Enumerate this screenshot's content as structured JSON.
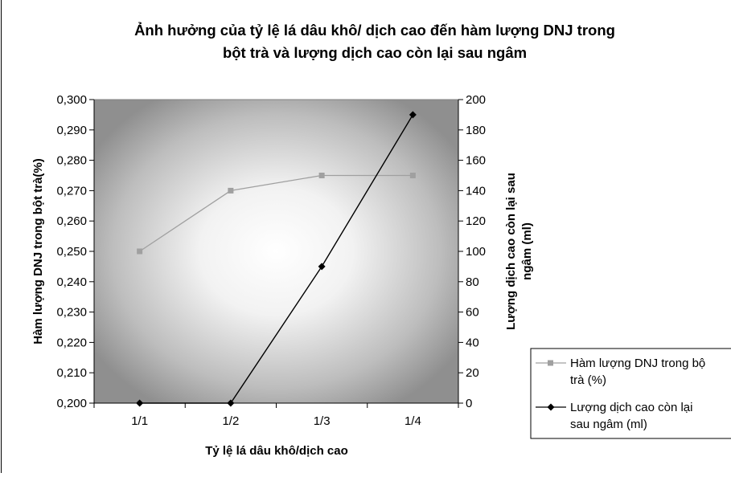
{
  "chart_data": {
    "type": "line",
    "title_line1": "Ảnh hưởng của tỷ lệ lá dâu khô/ dịch cao đến hàm lượng DNJ trong",
    "title_line2": "bột trà và lượng dịch cao còn lại sau ngâm",
    "xlabel": "Tỷ lệ lá dâu khô/dịch cao",
    "ylabel_left": "Hàm lượng DNJ trong bột trà(%)",
    "ylabel_right_line1": "Lượng dịch cao còn lại sau",
    "ylabel_right_line2": "ngâm (ml)",
    "categories": [
      "1/1",
      "1/2",
      "1/3",
      "1/4"
    ],
    "y_left": {
      "min": 0.2,
      "max": 0.3,
      "step": 0.01,
      "tick_labels": [
        "0,200",
        "0,210",
        "0,220",
        "0,230",
        "0,240",
        "0,250",
        "0,260",
        "0,270",
        "0,280",
        "0,290",
        "0,300"
      ]
    },
    "y_right": {
      "min": 0,
      "max": 200,
      "step": 20,
      "tick_labels": [
        "0",
        "20",
        "40",
        "60",
        "80",
        "100",
        "120",
        "140",
        "160",
        "180",
        "200"
      ]
    },
    "series": [
      {
        "name_line1": "Hàm lượng DNJ trong bộ",
        "name_line2": "trà (%)",
        "axis": "left",
        "marker": "square",
        "color": "#a0a0a0",
        "values": [
          0.25,
          0.27,
          0.275,
          0.275
        ]
      },
      {
        "name_line1": "Lượng dịch cao còn lại",
        "name_line2": "sau ngâm (ml)",
        "axis": "right",
        "marker": "diamond",
        "color": "#000000",
        "values": [
          0,
          0,
          90,
          190
        ]
      }
    ],
    "grid": false,
    "legend_position": "right"
  }
}
